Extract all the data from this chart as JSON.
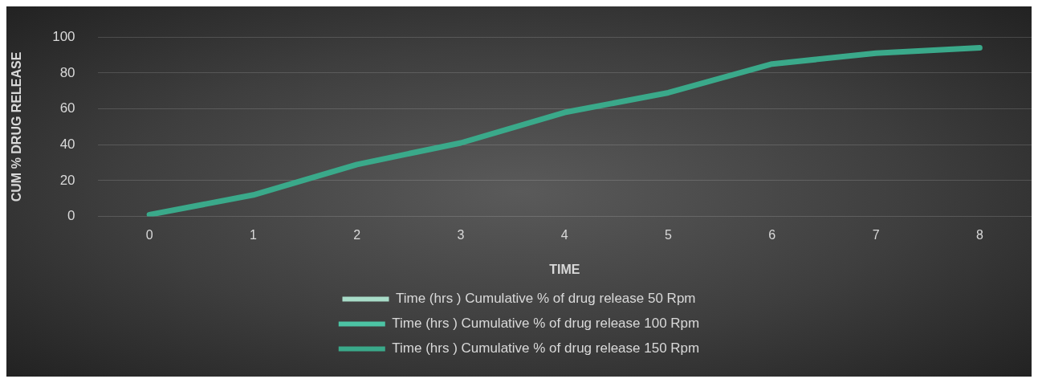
{
  "chart_data": {
    "type": "line",
    "xlabel": "TIME",
    "ylabel": "CUM % DRUG RELEASE",
    "categories": [
      "0",
      "1",
      "2",
      "3",
      "4",
      "5",
      "6",
      "7",
      "8"
    ],
    "series": [
      {
        "name": "Time (hrs ) Cumulative % of drug release 50 Rpm",
        "color": "#a8dcc8",
        "values": [
          null,
          null,
          null,
          null,
          null,
          null,
          null,
          null,
          null
        ]
      },
      {
        "name": "Time (hrs ) Cumulative % of drug release 100 Rpm",
        "color": "#4cc4a4",
        "values": [
          null,
          null,
          null,
          null,
          null,
          null,
          null,
          null,
          null
        ]
      },
      {
        "name": "Time (hrs ) Cumulative % of drug release 150 Rpm",
        "color": "#3aa98a",
        "values": [
          1,
          12,
          29,
          41,
          58,
          69,
          85,
          91,
          94
        ]
      }
    ],
    "ylim": [
      0,
      100
    ],
    "yticks": [
      0,
      20,
      40,
      60,
      80,
      100
    ],
    "grid": "y",
    "legend": "bottom",
    "marker": "none",
    "line_style": "solid"
  }
}
